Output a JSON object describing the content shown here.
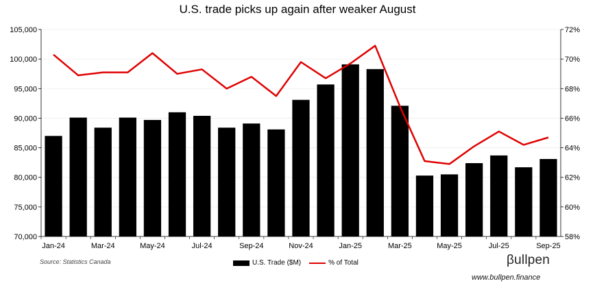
{
  "chart_data": {
    "type": "bar+line",
    "title": "U.S. trade picks up again after weaker August",
    "source": "Source: Statistics Canada",
    "brand": "βullpen",
    "website": "www.bullpen.finance",
    "categories": [
      "Jan-24",
      "Feb-24",
      "Mar-24",
      "Apr-24",
      "May-24",
      "Jun-24",
      "Jul-24",
      "Aug-24",
      "Sep-24",
      "Oct-24",
      "Nov-24",
      "Dec-24",
      "Jan-25",
      "Feb-25",
      "Mar-25",
      "Apr-25",
      "May-25",
      "Jun-25",
      "Jul-25",
      "Aug-25",
      "Sep-25"
    ],
    "xtick_labels": [
      "Jan-24",
      "Mar-24",
      "May-24",
      "Jul-24",
      "Sep-24",
      "Nov-24",
      "Jan-25",
      "Mar-25",
      "May-25",
      "Jul-25",
      "Sep-25"
    ],
    "series": [
      {
        "name": "U.S. Trade ($M)",
        "type": "bar",
        "axis": "left",
        "color": "#000000",
        "values": [
          87000,
          90100,
          88400,
          90100,
          89700,
          91000,
          90400,
          88400,
          89100,
          88100,
          93100,
          95700,
          99100,
          98300,
          92100,
          80300,
          80500,
          82400,
          83700,
          81700,
          83100
        ]
      },
      {
        "name": "% of Total",
        "type": "line",
        "axis": "right",
        "color": "#e00000",
        "values": [
          70.3,
          68.9,
          69.1,
          69.1,
          70.4,
          69.0,
          69.3,
          68.0,
          68.8,
          67.5,
          69.8,
          68.7,
          69.7,
          70.9,
          66.8,
          63.1,
          62.9,
          64.1,
          65.1,
          64.2,
          64.7
        ]
      }
    ],
    "yleft": {
      "min": 70000,
      "max": 105000,
      "step": 5000,
      "tick_labels": [
        "70,000",
        "75,000",
        "80,000",
        "85,000",
        "90,000",
        "95,000",
        "100,000",
        "105,000"
      ]
    },
    "yright": {
      "min": 58,
      "max": 72,
      "step": 2,
      "tick_labels": [
        "58%",
        "60%",
        "62%",
        "64%",
        "66%",
        "68%",
        "70%",
        "72%"
      ]
    },
    "legend": {
      "position": "bottom-center",
      "bar_label": "U.S. Trade ($M)",
      "line_label": "% of Total"
    },
    "grid": true
  }
}
